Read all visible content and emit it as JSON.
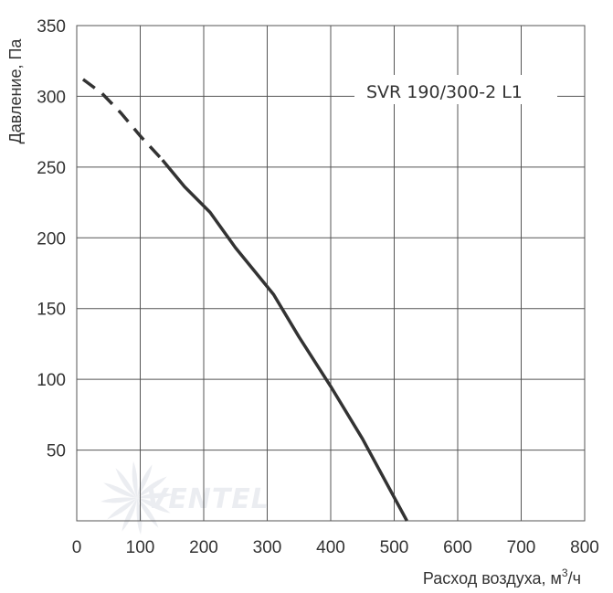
{
  "chart_data": {
    "type": "line",
    "xlabel": "Расход воздуха, м",
    "xlabel_sup": "3",
    "xlabel_suffix": "/ч",
    "ylabel": "Давление, Па",
    "xlim": [
      0,
      800
    ],
    "ylim": [
      0,
      350
    ],
    "x_ticks": [
      0,
      100,
      200,
      300,
      400,
      500,
      600,
      700,
      800
    ],
    "y_ticks": [
      50,
      100,
      150,
      200,
      250,
      300,
      350
    ],
    "grid": true,
    "annotation": "SVR 190/300-2 L1",
    "watermark": "VENTEL",
    "series": [
      {
        "dashed_x": [
          10,
          40,
          70,
          100,
          135
        ],
        "dashed_y": [
          312,
          302,
          288,
          272,
          255
        ],
        "x": [
          135,
          170,
          210,
          250,
          310,
          350,
          400,
          450,
          520
        ],
        "y": [
          255,
          236,
          218,
          193,
          160,
          130,
          95,
          58,
          0
        ],
        "color": "#333333"
      }
    ]
  }
}
